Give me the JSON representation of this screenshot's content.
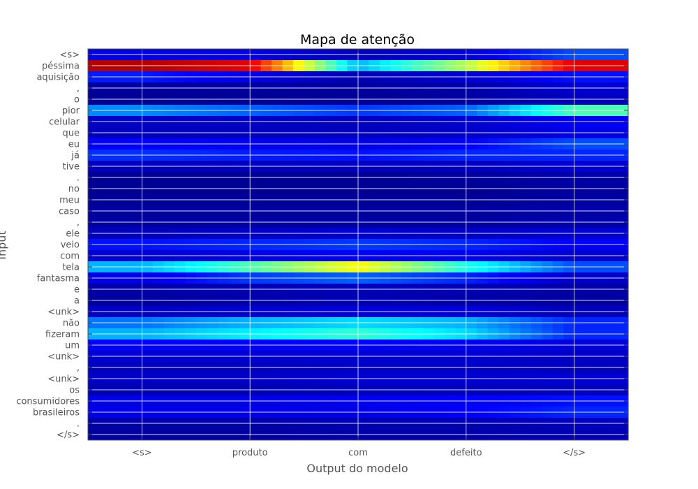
{
  "chart_data": {
    "type": "heatmap",
    "title": "Mapa de atenção",
    "xlabel": "Output do modelo",
    "ylabel": "Input",
    "grid": true,
    "colormap": "jet",
    "value_range": [
      0,
      1
    ],
    "x_categories": [
      "<s>",
      "produto",
      "com",
      "defeito",
      "</s>"
    ],
    "y_categories": [
      "<s>",
      "péssima",
      "aquisição",
      ",",
      "o",
      "pior",
      "celular",
      "que",
      "eu",
      "já",
      "tive",
      ".",
      "no",
      "meu",
      "caso",
      ",",
      "ele",
      "veio",
      "com",
      "tela",
      "fantasma",
      "e",
      "a",
      "<unk>",
      "não",
      "fizeram",
      "um",
      "<unk>",
      ",",
      "<unk>",
      "os",
      "consumidores",
      "brasileiros",
      ".",
      "</s>"
    ],
    "values": [
      [
        0.1,
        0.1,
        0.06,
        0.09,
        0.2
      ],
      [
        0.95,
        0.9,
        0.3,
        0.55,
        0.9
      ],
      [
        0.15,
        0.1,
        0.05,
        0.08,
        0.14
      ],
      [
        0.03,
        0.03,
        0.03,
        0.04,
        0.08
      ],
      [
        0.02,
        0.02,
        0.02,
        0.03,
        0.06
      ],
      [
        0.26,
        0.22,
        0.18,
        0.22,
        0.45
      ],
      [
        0.07,
        0.07,
        0.06,
        0.08,
        0.12
      ],
      [
        0.06,
        0.06,
        0.06,
        0.07,
        0.1
      ],
      [
        0.12,
        0.11,
        0.1,
        0.12,
        0.2
      ],
      [
        0.17,
        0.15,
        0.14,
        0.16,
        0.16
      ],
      [
        0.06,
        0.06,
        0.06,
        0.06,
        0.08
      ],
      [
        0.02,
        0.02,
        0.02,
        0.03,
        0.04
      ],
      [
        0.02,
        0.02,
        0.02,
        0.02,
        0.03
      ],
      [
        0.02,
        0.02,
        0.02,
        0.02,
        0.03
      ],
      [
        0.03,
        0.03,
        0.03,
        0.03,
        0.04
      ],
      [
        0.03,
        0.03,
        0.03,
        0.03,
        0.04
      ],
      [
        0.06,
        0.07,
        0.08,
        0.07,
        0.08
      ],
      [
        0.14,
        0.16,
        0.18,
        0.16,
        0.12
      ],
      [
        0.08,
        0.1,
        0.12,
        0.11,
        0.08
      ],
      [
        0.3,
        0.45,
        0.62,
        0.4,
        0.2
      ],
      [
        0.1,
        0.18,
        0.22,
        0.16,
        0.07
      ],
      [
        0.04,
        0.05,
        0.06,
        0.05,
        0.04
      ],
      [
        0.03,
        0.04,
        0.05,
        0.04,
        0.03
      ],
      [
        0.07,
        0.08,
        0.09,
        0.09,
        0.06
      ],
      [
        0.24,
        0.3,
        0.34,
        0.3,
        0.16
      ],
      [
        0.3,
        0.36,
        0.42,
        0.34,
        0.16
      ],
      [
        0.12,
        0.12,
        0.12,
        0.11,
        0.09
      ],
      [
        0.08,
        0.08,
        0.08,
        0.08,
        0.07
      ],
      [
        0.06,
        0.06,
        0.07,
        0.07,
        0.06
      ],
      [
        0.07,
        0.07,
        0.08,
        0.08,
        0.08
      ],
      [
        0.05,
        0.05,
        0.06,
        0.06,
        0.06
      ],
      [
        0.1,
        0.1,
        0.11,
        0.12,
        0.14
      ],
      [
        0.1,
        0.1,
        0.1,
        0.12,
        0.16
      ],
      [
        0.04,
        0.04,
        0.05,
        0.05,
        0.06
      ],
      [
        0.03,
        0.03,
        0.04,
        0.04,
        0.05
      ]
    ]
  }
}
